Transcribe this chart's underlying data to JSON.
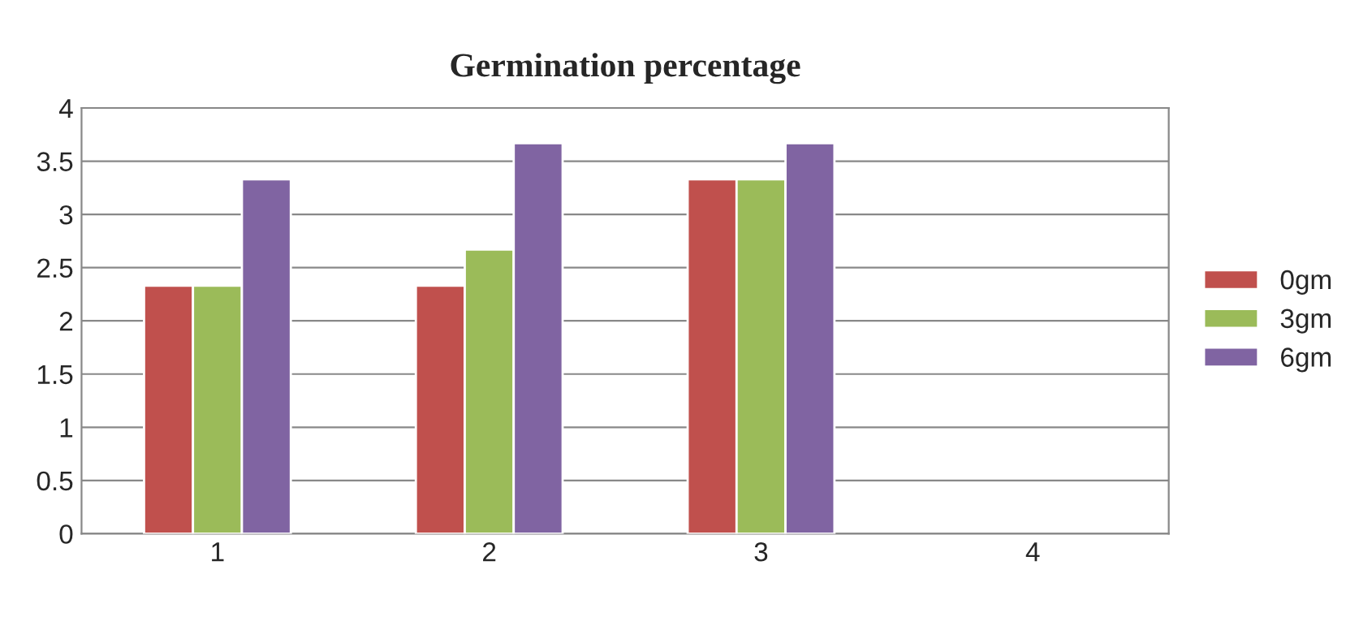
{
  "chart_data": {
    "type": "bar",
    "title": "Germination percentage",
    "categories": [
      "1",
      "2",
      "3",
      "4"
    ],
    "series": [
      {
        "name": "0gm",
        "color": "#c0504d",
        "values": [
          2.33,
          2.33,
          3.33,
          null
        ]
      },
      {
        "name": "3gm",
        "color": "#9bbb59",
        "values": [
          2.33,
          2.67,
          3.33,
          null
        ]
      },
      {
        "name": "6gm",
        "color": "#8064a2",
        "values": [
          3.33,
          3.67,
          3.67,
          null
        ]
      }
    ],
    "ylim": [
      0,
      4
    ],
    "yticks": [
      0,
      0.5,
      1,
      1.5,
      2,
      2.5,
      3,
      3.5,
      4
    ],
    "grid": "y",
    "legend": "right"
  }
}
